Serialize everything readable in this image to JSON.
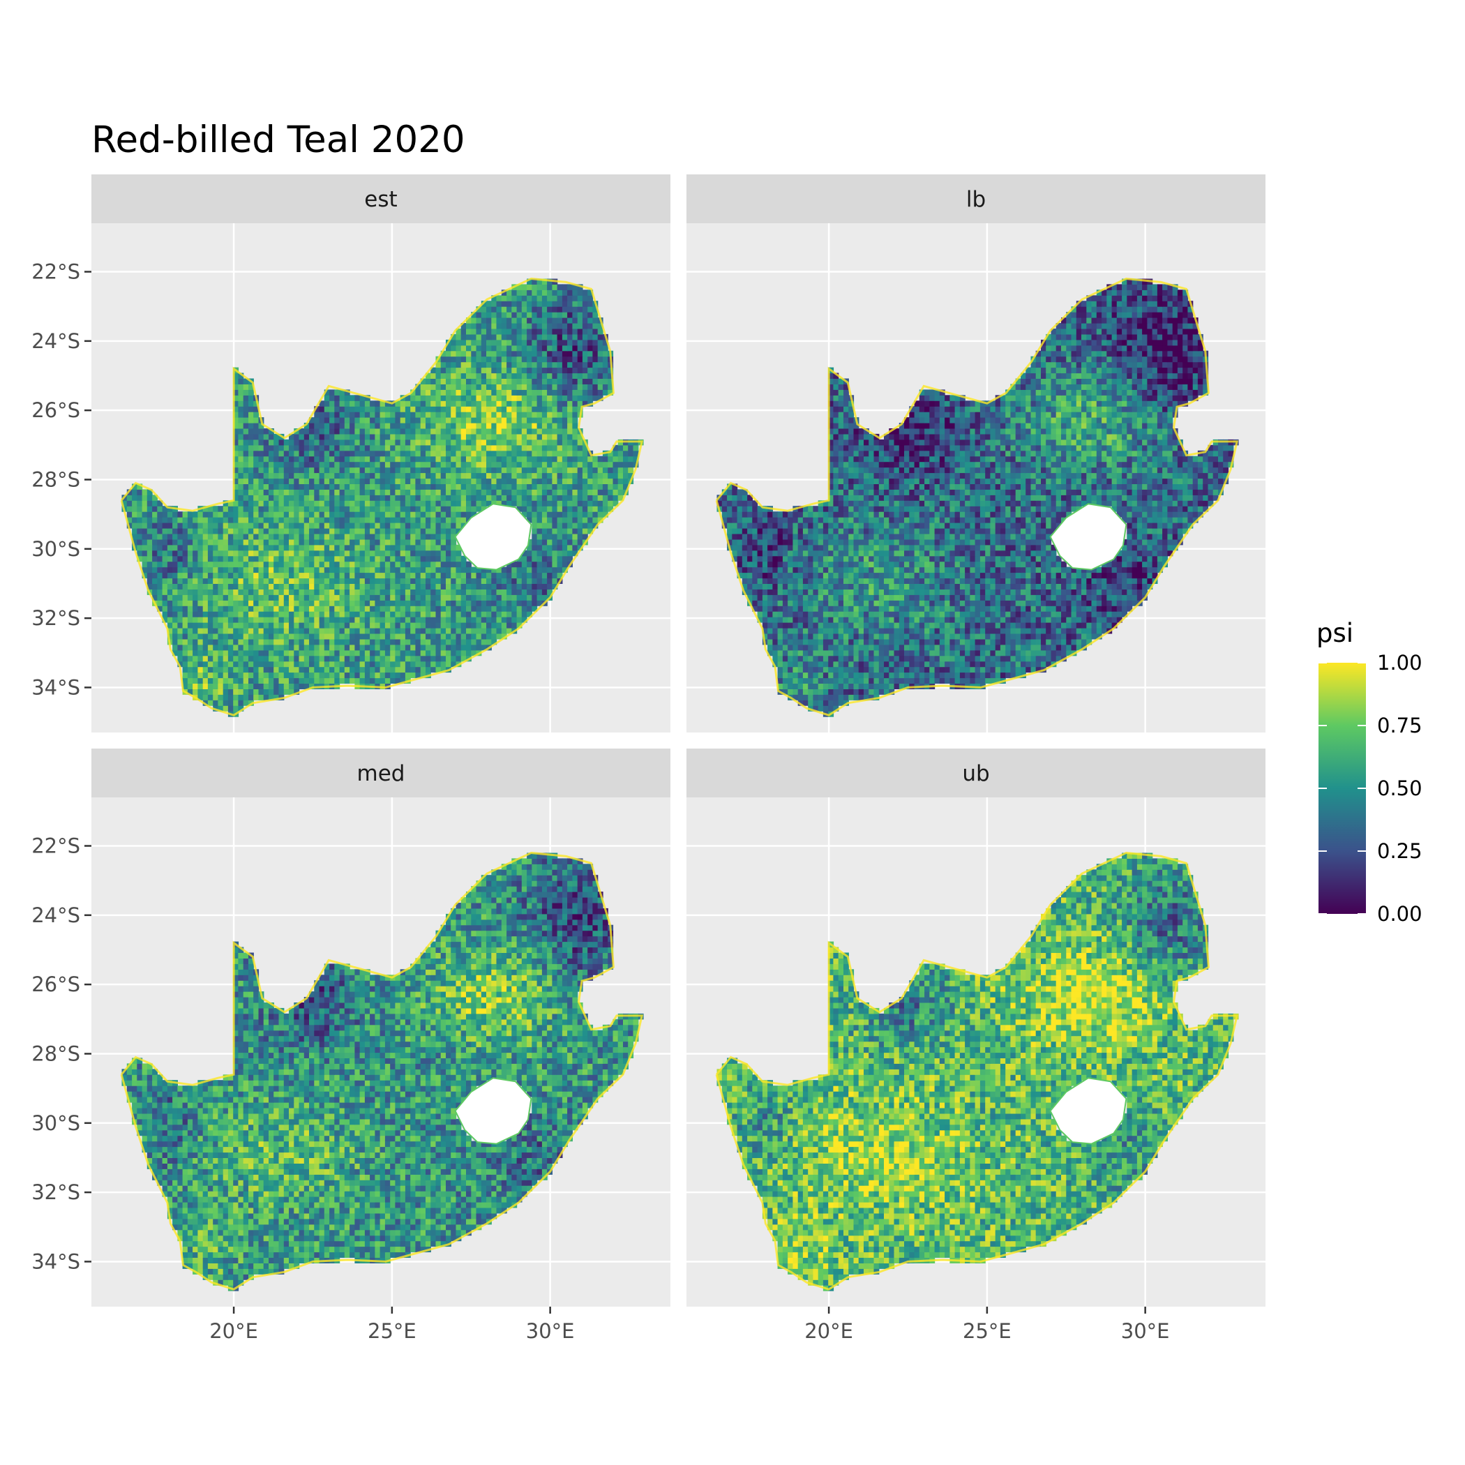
{
  "title": "Red-billed Teal 2020",
  "panels": [
    {
      "label": "est"
    },
    {
      "label": "lb"
    },
    {
      "label": "med"
    },
    {
      "label": "ub"
    }
  ],
  "axes": {
    "y_ticks": [
      "22°S",
      "24°S",
      "26°S",
      "28°S",
      "30°S",
      "32°S",
      "34°S"
    ],
    "y_values": [
      -22,
      -24,
      -26,
      -28,
      -30,
      -32,
      -34
    ],
    "x_ticks": [
      "20°E",
      "25°E",
      "30°E"
    ],
    "x_values": [
      20,
      25,
      30
    ],
    "x_range": [
      15.5,
      33.8
    ],
    "y_range": [
      -35.3,
      -20.6
    ]
  },
  "legend": {
    "title": "psi",
    "labels": [
      "1.00",
      "0.75",
      "0.50",
      "0.25",
      "0.00"
    ],
    "values": [
      1.0,
      0.75,
      0.5,
      0.25,
      0.0
    ],
    "colormap": "viridis",
    "colors": [
      "#440154",
      "#3b528b",
      "#21918c",
      "#5ec962",
      "#fde725"
    ]
  },
  "colors": {
    "panel_bg": "#ebebeb",
    "strip_bg": "#d9d9d9",
    "grid": "#ffffff",
    "text": "#4d4d4d"
  }
}
